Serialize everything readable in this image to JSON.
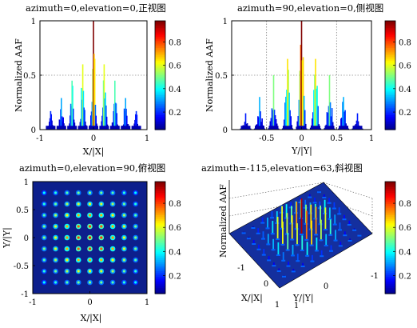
{
  "chart_data": [
    {
      "id": "front",
      "type": "bar",
      "title": "azimuth=0,elevation=0,正视图",
      "xlabel": "X/|X|",
      "ylabel": "Normalized AAF",
      "xlim": [
        -1,
        1
      ],
      "ylim": [
        0,
        1
      ],
      "xticks": [
        "-1",
        "0",
        "1"
      ],
      "yticks": [
        "0",
        "0.5",
        "1"
      ],
      "grid": true,
      "lobe_centers": [
        -0.8,
        -0.6,
        -0.4,
        -0.2,
        0,
        0.2,
        0.4,
        0.6,
        0.8
      ],
      "lobe_peaks": [
        0.17,
        0.29,
        0.45,
        0.6,
        1.0,
        0.6,
        0.45,
        0.29,
        0.17
      ]
    },
    {
      "id": "side",
      "type": "bar",
      "title": "azimuth=90,elevation=0,侧视图",
      "xlabel": "Y/|Y|",
      "ylabel": "Normalized AAF",
      "xlim": [
        -1,
        1
      ],
      "ylim": [
        0,
        1
      ],
      "xticks": [
        "-0.5",
        "0",
        "0.5",
        "1"
      ],
      "yticks": [
        "0",
        "0.5",
        "1"
      ],
      "grid": true,
      "lobe_centers": [
        -0.8,
        -0.6,
        -0.4,
        -0.2,
        0,
        0.2,
        0.4,
        0.6,
        0.8
      ],
      "lobe_peaks": [
        0.15,
        0.3,
        0.5,
        0.65,
        1.0,
        0.65,
        0.5,
        0.3,
        0.15
      ]
    },
    {
      "id": "top",
      "type": "heatmap",
      "title": "azimuth=0,elevation=90,俯视图",
      "xlabel": "X/|X|",
      "ylabel": "Y/|Y|",
      "xlim": [
        -1,
        1
      ],
      "ylim": [
        -1,
        1
      ],
      "xticks": [
        "-1",
        "0",
        "1"
      ],
      "yticks": [
        "1",
        "0.5",
        "0",
        "-0.5",
        "-1"
      ],
      "grid_points": [
        -0.8,
        -0.6,
        -0.4,
        -0.2,
        0,
        0.2,
        0.4,
        0.6,
        0.8
      ]
    },
    {
      "id": "oblique",
      "type": "bar",
      "title": "azimuth=-115,elevation=63,斜视图",
      "xlabel": "X/|X|",
      "ylabel": "Normalized AAF",
      "zlabel": "Y/|Y|",
      "xticks": [
        "-1",
        "0",
        "1"
      ],
      "yticks": [
        "-1",
        "0",
        "1"
      ]
    }
  ],
  "colorbar": {
    "ticks": [
      "0.8",
      "0.6",
      "0.4",
      "0.2"
    ],
    "values": [
      0.8,
      0.6,
      0.4,
      0.2
    ],
    "range": [
      0.05,
      0.98
    ],
    "colormap": "jet"
  }
}
